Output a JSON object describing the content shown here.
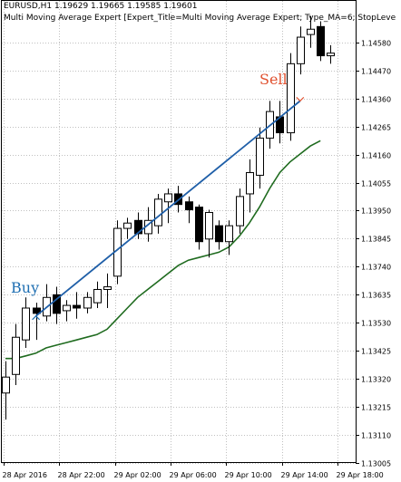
{
  "chart_header": {
    "symbol_line": "EURUSD,H1  1.19629 1.19665 1.19585 1.19601",
    "expert_line": "Multi Moving Average Expert [Expert_Title=Multi Moving Average Expert; Type_MA=6; StopLeve"
  },
  "signals": {
    "buy_label": "Buy",
    "sell_label": "Sell",
    "buy_color": "#1f6fb2",
    "sell_color": "#e0502e"
  },
  "colors": {
    "trend_line": "#1f5fa8",
    "moving_average": "#1f6b1f",
    "candle_up_fill": "#ffffff",
    "candle_down_fill": "#000000",
    "grid": "#c0c0c0"
  },
  "chart_data": {
    "type": "candlestick",
    "price_ticks": [
      "1.14580",
      "1.14470",
      "1.14360",
      "1.14265",
      "1.14160",
      "1.14055",
      "1.13950",
      "1.13845",
      "1.13740",
      "1.13635",
      "1.13530",
      "1.13425",
      "1.13320",
      "1.13215",
      "1.13110",
      "1.13005"
    ],
    "time_ticks": [
      "28 Apr 2016",
      "28 Apr 22:00",
      "29 Apr 02:00",
      "29 Apr 06:00",
      "29 Apr 10:00",
      "29 Apr 14:00",
      "29 Apr 18:00"
    ],
    "ylim": [
      1.1294,
      1.1468
    ],
    "candles": [
      {
        "o": 1.132,
        "h": 1.1332,
        "l": 1.131,
        "c": 1.1326
      },
      {
        "o": 1.1327,
        "h": 1.1346,
        "l": 1.1323,
        "c": 1.1341
      },
      {
        "o": 1.134,
        "h": 1.1356,
        "l": 1.1337,
        "c": 1.1352
      },
      {
        "o": 1.1352,
        "h": 1.1354,
        "l": 1.134,
        "c": 1.135
      },
      {
        "o": 1.1349,
        "h": 1.1361,
        "l": 1.1347,
        "c": 1.1356
      },
      {
        "o": 1.1357,
        "h": 1.136,
        "l": 1.1346,
        "c": 1.135
      },
      {
        "o": 1.1351,
        "h": 1.1355,
        "l": 1.1347,
        "c": 1.1353
      },
      {
        "o": 1.1353,
        "h": 1.1358,
        "l": 1.1348,
        "c": 1.1352
      },
      {
        "o": 1.1352,
        "h": 1.1358,
        "l": 1.135,
        "c": 1.1356
      },
      {
        "o": 1.1354,
        "h": 1.1362,
        "l": 1.1352,
        "c": 1.1359
      },
      {
        "o": 1.1359,
        "h": 1.1365,
        "l": 1.1352,
        "c": 1.136
      },
      {
        "o": 1.1364,
        "h": 1.1385,
        "l": 1.1361,
        "c": 1.1382
      },
      {
        "o": 1.1382,
        "h": 1.1386,
        "l": 1.1378,
        "c": 1.1384
      },
      {
        "o": 1.1385,
        "h": 1.1388,
        "l": 1.1378,
        "c": 1.138
      },
      {
        "o": 1.138,
        "h": 1.139,
        "l": 1.1377,
        "c": 1.1385
      },
      {
        "o": 1.1383,
        "h": 1.1395,
        "l": 1.138,
        "c": 1.1393
      },
      {
        "o": 1.1392,
        "h": 1.1397,
        "l": 1.1384,
        "c": 1.1395
      },
      {
        "o": 1.1395,
        "h": 1.1398,
        "l": 1.1388,
        "c": 1.1391
      },
      {
        "o": 1.1392,
        "h": 1.1394,
        "l": 1.1384,
        "c": 1.1389
      },
      {
        "o": 1.139,
        "h": 1.1391,
        "l": 1.1374,
        "c": 1.1377
      },
      {
        "o": 1.1378,
        "h": 1.1389,
        "l": 1.1371,
        "c": 1.1388
      },
      {
        "o": 1.1383,
        "h": 1.1385,
        "l": 1.1374,
        "c": 1.1377
      },
      {
        "o": 1.1377,
        "h": 1.1385,
        "l": 1.1372,
        "c": 1.1383
      },
      {
        "o": 1.1383,
        "h": 1.1397,
        "l": 1.138,
        "c": 1.1394
      },
      {
        "o": 1.1395,
        "h": 1.1408,
        "l": 1.1388,
        "c": 1.1403
      },
      {
        "o": 1.1402,
        "h": 1.142,
        "l": 1.1397,
        "c": 1.1416
      },
      {
        "o": 1.1416,
        "h": 1.143,
        "l": 1.1412,
        "c": 1.1426
      },
      {
        "o": 1.1424,
        "h": 1.143,
        "l": 1.1414,
        "c": 1.1418
      },
      {
        "o": 1.1418,
        "h": 1.1448,
        "l": 1.1415,
        "c": 1.1444
      },
      {
        "o": 1.1444,
        "h": 1.1458,
        "l": 1.144,
        "c": 1.1454
      },
      {
        "o": 1.1455,
        "h": 1.1462,
        "l": 1.145,
        "c": 1.1457
      },
      {
        "o": 1.1458,
        "h": 1.146,
        "l": 1.1445,
        "c": 1.1447
      },
      {
        "o": 1.1447,
        "h": 1.1451,
        "l": 1.1444,
        "c": 1.1448
      }
    ],
    "moving_average": [
      1.1333,
      1.1333,
      1.1334,
      1.1335,
      1.1337,
      1.1338,
      1.1339,
      1.134,
      1.1341,
      1.1342,
      1.1344,
      1.1348,
      1.1352,
      1.1356,
      1.1359,
      1.1362,
      1.1365,
      1.1368,
      1.137,
      1.1371,
      1.1372,
      1.1373,
      1.1375,
      1.1379,
      1.1384,
      1.139,
      1.1397,
      1.1403,
      1.1407,
      1.141,
      1.1413,
      1.1415
    ],
    "trend_line": {
      "from": {
        "index": 3,
        "price": 1.1349
      },
      "to": {
        "index": 29,
        "price": 1.143
      }
    },
    "buy_signal": {
      "index": 3,
      "price": 1.1349
    },
    "sell_signal": {
      "index": 29,
      "price": 1.143
    }
  }
}
